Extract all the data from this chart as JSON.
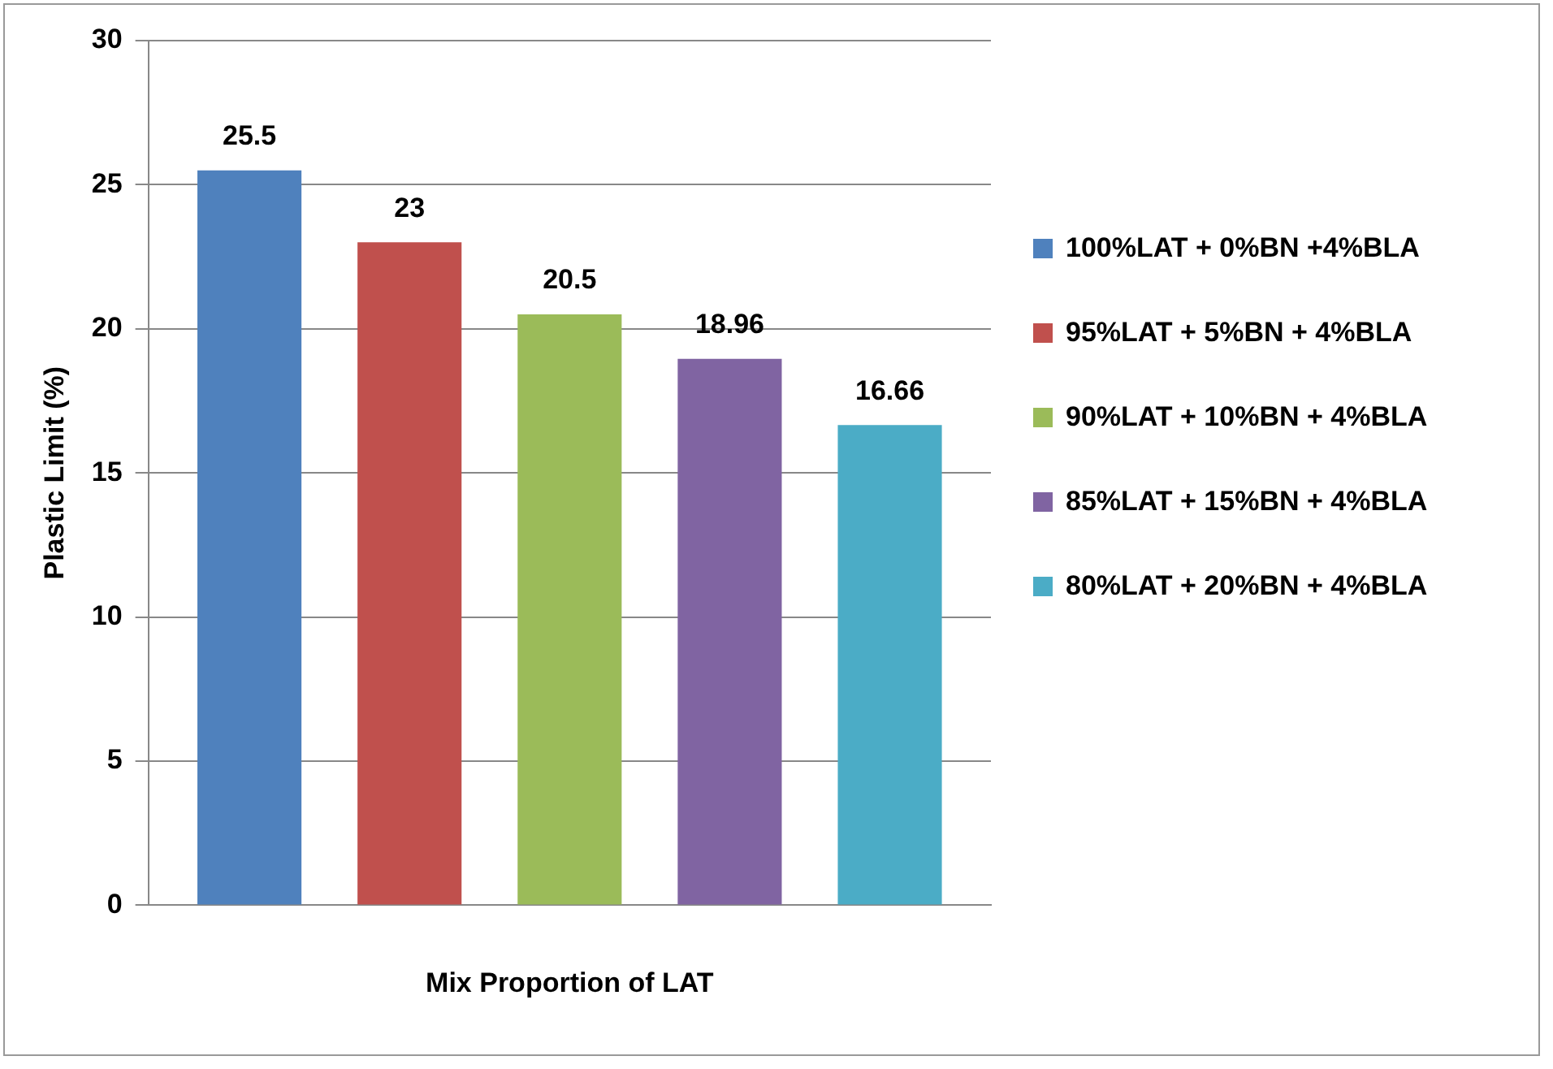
{
  "chart_data": {
    "type": "bar",
    "xlabel": "Mix Proportion of LAT",
    "ylabel": "Plastic Limit (%)",
    "categories": [
      null
    ],
    "series": [
      {
        "name": "100%LAT + 0%BN +4%BLA",
        "color": "#4f81bd",
        "values": [
          25.5
        ]
      },
      {
        "name": "95%LAT + 5%BN + 4%BLA",
        "color": "#c0504d",
        "values": [
          23
        ]
      },
      {
        "name": "90%LAT + 10%BN + 4%BLA",
        "color": "#9bbb59",
        "values": [
          20.5
        ]
      },
      {
        "name": "85%LAT + 15%BN + 4%BLA",
        "color": "#8064a2",
        "values": [
          18.96
        ]
      },
      {
        "name": "80%LAT + 20%BN + 4%BLA",
        "color": "#4bacc6",
        "values": [
          16.66
        ]
      }
    ],
    "ylim": [
      0,
      30
    ],
    "yticks": [
      0,
      5,
      10,
      15,
      20,
      25,
      30
    ],
    "grid": "y",
    "legend": "right",
    "data_labels": true
  }
}
